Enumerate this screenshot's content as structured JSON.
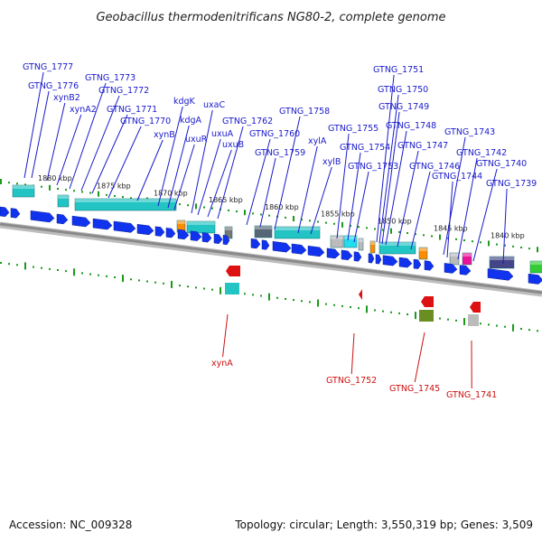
{
  "title": "Geobacillus thermodenitrificans NG80-2, complete genome",
  "footer": {
    "accession": "Accession: NC_009328",
    "summary": "Topology: circular; Length: 3,550,319 bp; Genes: 3,509"
  },
  "colors": {
    "forward_label": "#1a1acc",
    "reverse_label": "#cc1111",
    "cds_blue": "#1133ee",
    "backbone": "#8a8a8a"
  },
  "scale_labels": [
    "1880 kbp",
    "1875 kbp",
    "1870 kbp",
    "1865 kbp",
    "1860 kbp",
    "1855 kbp",
    "1850 kbp",
    "1845 kbp",
    "1840 kbp"
  ],
  "forward_genes": [
    "GTNG_1777",
    "GTNG_1776",
    "xynB2",
    "xynA2",
    "GTNG_1773",
    "GTNG_1772",
    "GTNG_1771",
    "GTNG_1770",
    "xynB",
    "kdgK",
    "kdgA",
    "uxuR",
    "uxaC",
    "uxuA",
    "uxuB",
    "GTNG_1762",
    "GTNG_1760",
    "GTNG_1759",
    "GTNG_1758",
    "xylA",
    "xylB",
    "GTNG_1755",
    "GTNG_1754",
    "GTNG_1753",
    "GTNG_1751",
    "GTNG_1750",
    "GTNG_1749",
    "GTNG_1748",
    "GTNG_1747",
    "GTNG_1746",
    "GTNG_1743",
    "GTNG_1744",
    "GTNG_1742",
    "GTNG_1740",
    "GTNG_1739"
  ],
  "reverse_genes": [
    "xynA",
    "GTNG_1752",
    "GTNG_1745",
    "GTNG_1741"
  ]
}
